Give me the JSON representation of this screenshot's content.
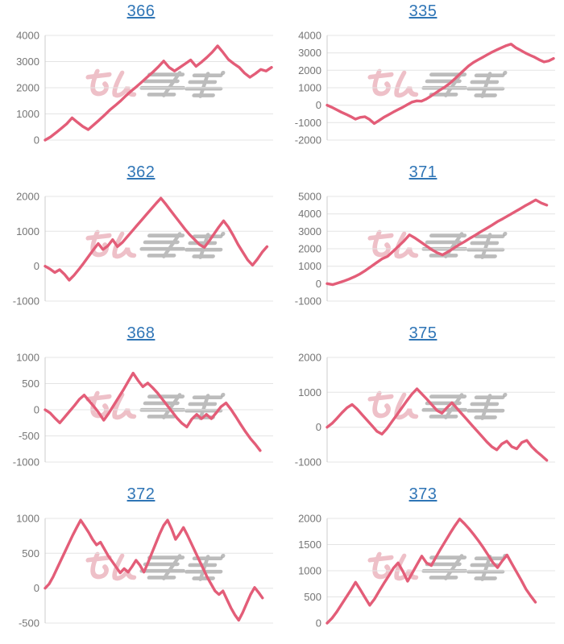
{
  "watermark": {
    "text": "みんレポ"
  },
  "colors": {
    "line": "#e35d78",
    "grid": "#e4e4e4",
    "axis": "#cccccc",
    "tick_text": "#757575",
    "title_blue": "#2f75b6",
    "watermark_pink": "#e49aa6",
    "watermark_gray": "#a3a3a3",
    "background": "#ffffff"
  },
  "chart_data": [
    {
      "type": "line",
      "title": "366",
      "ylim": [
        0,
        4000
      ],
      "yticks": [
        4000,
        3000,
        2000,
        1000,
        0
      ],
      "x_span": 1.0,
      "grid": true,
      "legend": "none",
      "values": [
        0,
        120,
        280,
        450,
        620,
        850,
        680,
        520,
        400,
        580,
        760,
        950,
        1150,
        1320,
        1500,
        1700,
        1880,
        2050,
        2230,
        2420,
        2600,
        2800,
        3020,
        2780,
        2640,
        2780,
        2920,
        3060,
        2820,
        2980,
        3160,
        3360,
        3600,
        3350,
        3080,
        2920,
        2780,
        2560,
        2400,
        2540,
        2700,
        2640,
        2780
      ]
    },
    {
      "type": "line",
      "title": "335",
      "ylim": [
        -2000,
        4000
      ],
      "yticks": [
        4000,
        3000,
        2000,
        1000,
        0,
        -1000,
        -2000
      ],
      "x_span": 1.0,
      "grid": true,
      "legend": "none",
      "values": [
        0,
        -120,
        -260,
        -400,
        -520,
        -650,
        -800,
        -700,
        -660,
        -820,
        -1050,
        -880,
        -700,
        -550,
        -400,
        -260,
        -120,
        30,
        180,
        250,
        230,
        350,
        520,
        700,
        880,
        1050,
        1250,
        1500,
        1750,
        2000,
        2250,
        2450,
        2600,
        2750,
        2900,
        3050,
        3180,
        3300,
        3420,
        3500,
        3300,
        3150,
        3000,
        2870,
        2750,
        2600,
        2480,
        2540,
        2680
      ]
    },
    {
      "type": "line",
      "title": "362",
      "ylim": [
        -1000,
        2000
      ],
      "yticks": [
        2000,
        1000,
        0,
        -1000
      ],
      "x_span": 0.98,
      "grid": true,
      "legend": "none",
      "values": [
        0,
        -80,
        -180,
        -100,
        -230,
        -400,
        -260,
        -90,
        90,
        280,
        470,
        650,
        480,
        580,
        760,
        560,
        680,
        840,
        1000,
        1160,
        1320,
        1480,
        1640,
        1800,
        1950,
        1780,
        1600,
        1420,
        1240,
        1060,
        900,
        760,
        620,
        540,
        720,
        920,
        1120,
        1300,
        1120,
        880,
        620,
        400,
        180,
        30,
        200,
        400,
        560
      ]
    },
    {
      "type": "line",
      "title": "371",
      "ylim": [
        -1000,
        5000
      ],
      "yticks": [
        5000,
        4000,
        3000,
        2000,
        1000,
        0,
        -1000
      ],
      "x_span": 0.97,
      "grid": true,
      "legend": "none",
      "values": [
        0,
        -60,
        40,
        140,
        260,
        400,
        560,
        760,
        980,
        1200,
        1420,
        1560,
        1850,
        2150,
        2450,
        2800,
        2620,
        2400,
        2180,
        1960,
        1780,
        1650,
        1820,
        2020,
        2220,
        2400,
        2600,
        2780,
        2980,
        3160,
        3350,
        3550,
        3720,
        3900,
        4080,
        4260,
        4450,
        4620,
        4800,
        4620,
        4500
      ]
    },
    {
      "type": "line",
      "title": "368",
      "ylim": [
        -1000,
        1000
      ],
      "yticks": [
        1000,
        500,
        0,
        -500,
        -1000
      ],
      "x_span": 0.95,
      "grid": true,
      "legend": "none",
      "values": [
        0,
        -60,
        -160,
        -250,
        -140,
        -30,
        80,
        200,
        280,
        170,
        60,
        -60,
        -200,
        -70,
        80,
        230,
        380,
        540,
        700,
        560,
        440,
        510,
        420,
        320,
        200,
        80,
        -40,
        -160,
        -260,
        -330,
        -180,
        -90,
        -170,
        -90,
        -170,
        -60,
        60,
        130,
        10,
        -130,
        -280,
        -420,
        -550,
        -660,
        -780
      ]
    },
    {
      "type": "line",
      "title": "375",
      "ylim": [
        -1000,
        2000
      ],
      "yticks": [
        2000,
        1000,
        0,
        -1000
      ],
      "x_span": 0.97,
      "grid": true,
      "legend": "none",
      "values": [
        0,
        110,
        260,
        420,
        560,
        650,
        520,
        360,
        200,
        40,
        -120,
        -200,
        -40,
        160,
        360,
        560,
        760,
        950,
        1100,
        950,
        800,
        640,
        480,
        400,
        560,
        700,
        540,
        380,
        220,
        60,
        -100,
        -260,
        -420,
        -560,
        -650,
        -480,
        -400,
        -560,
        -620,
        -440,
        -380,
        -560,
        -700,
        -820,
        -950
      ]
    },
    {
      "type": "line",
      "title": "372",
      "ylim": [
        -500,
        1000
      ],
      "yticks": [
        1000,
        500,
        0,
        -500
      ],
      "x_span": 0.96,
      "grid": true,
      "legend": "none",
      "values": [
        0,
        60,
        160,
        280,
        400,
        520,
        640,
        760,
        870,
        975,
        890,
        800,
        700,
        620,
        660,
        560,
        460,
        380,
        300,
        220,
        280,
        230,
        310,
        400,
        330,
        230,
        360,
        500,
        640,
        780,
        900,
        975,
        850,
        700,
        780,
        870,
        760,
        640,
        520,
        400,
        280,
        160,
        60,
        -40,
        -90,
        -40,
        -160,
        -280,
        -380,
        -460,
        -350,
        -220,
        -90,
        10,
        -60,
        -140
      ]
    },
    {
      "type": "line",
      "title": "373",
      "ylim": [
        0,
        2000
      ],
      "yticks": [
        2000,
        1500,
        1000,
        500,
        0
      ],
      "x_span": 0.92,
      "grid": true,
      "legend": "none",
      "values": [
        0,
        90,
        210,
        350,
        490,
        630,
        780,
        640,
        490,
        340,
        460,
        610,
        760,
        900,
        1050,
        1150,
        990,
        800,
        960,
        1120,
        1280,
        1150,
        1100,
        1260,
        1420,
        1570,
        1720,
        1860,
        1990,
        1900,
        1800,
        1690,
        1570,
        1440,
        1300,
        1160,
        1060,
        1190,
        1300,
        1140,
        980,
        820,
        650,
        520,
        400
      ]
    }
  ]
}
